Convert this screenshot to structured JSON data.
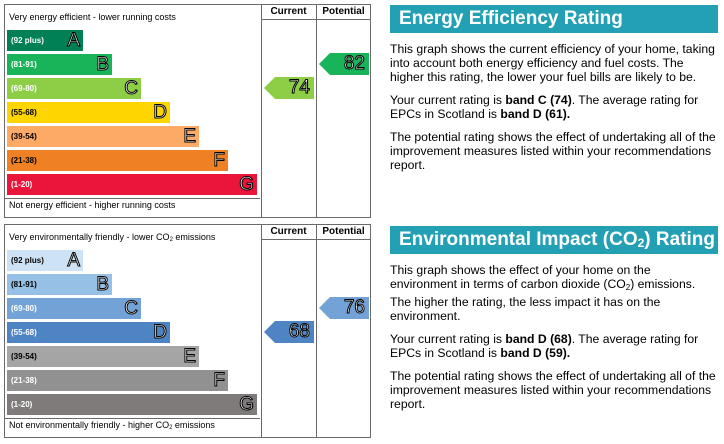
{
  "energy": {
    "top_caption": "Very energy efficient - lower running costs",
    "bottom_caption": "Not energy efficient - higher running costs",
    "col_current": "Current",
    "col_potential": "Potential",
    "bands": [
      {
        "range": "(92 plus)",
        "letter": "A",
        "color": "#008054",
        "text_color": "#ffffff"
      },
      {
        "range": "(81-91)",
        "letter": "B",
        "color": "#19b459",
        "text_color": "#ffffff"
      },
      {
        "range": "(69-80)",
        "letter": "C",
        "color": "#8dce46",
        "text_color": "#ffffff"
      },
      {
        "range": "(55-68)",
        "letter": "D",
        "color": "#ffd500",
        "text_color": "#000000"
      },
      {
        "range": "(39-54)",
        "letter": "E",
        "color": "#fcaa65",
        "text_color": "#000000"
      },
      {
        "range": "(21-38)",
        "letter": "F",
        "color": "#ef8023",
        "text_color": "#000000"
      },
      {
        "range": "(1-20)",
        "letter": "G",
        "color": "#e9153b",
        "text_color": "#ffffff"
      }
    ],
    "current": {
      "value": "74",
      "band": "C",
      "color": "#8dce46"
    },
    "potential": {
      "value": "82",
      "band": "B",
      "color": "#19b459"
    }
  },
  "environment": {
    "top_caption_pre": "Very environmentally friendly - lower CO",
    "top_caption_sub": "2",
    "top_caption_post": " emissions",
    "bottom_caption_pre": "Not environmentally friendly - higher CO",
    "bottom_caption_sub": "2",
    "bottom_caption_post": " emissions",
    "col_current": "Current",
    "col_potential": "Potential",
    "bands": [
      {
        "range": "(92 plus)",
        "letter": "A",
        "color": "#cde3f5",
        "text_color": "#000000"
      },
      {
        "range": "(81-91)",
        "letter": "B",
        "color": "#97c0e6",
        "text_color": "#000000"
      },
      {
        "range": "(69-80)",
        "letter": "C",
        "color": "#73a2d6",
        "text_color": "#ffffff"
      },
      {
        "range": "(55-68)",
        "letter": "D",
        "color": "#4e84c4",
        "text_color": "#ffffff"
      },
      {
        "range": "(39-54)",
        "letter": "E",
        "color": "#a5a5a5",
        "text_color": "#000000"
      },
      {
        "range": "(21-38)",
        "letter": "F",
        "color": "#919191",
        "text_color": "#ffffff"
      },
      {
        "range": "(1-20)",
        "letter": "G",
        "color": "#807b7b",
        "text_color": "#ffffff"
      }
    ],
    "current": {
      "value": "68",
      "band": "D",
      "color": "#4e84c4"
    },
    "potential": {
      "value": "76",
      "band": "C",
      "color": "#73a2d6"
    }
  },
  "panel_energy": {
    "title": "Energy Efficiency Rating",
    "para1": "This graph shows the current efficiency of your home, taking into account both energy efficiency and fuel costs. The higher this rating, the lower your fuel bills are likely to be.",
    "para2_pre": "Your current rating is ",
    "para2_b1": "band C (74)",
    "para2_mid": ". The average rating for EPCs in Scotland is ",
    "para2_b2": "band D (61).",
    "para3": "The potential rating shows the effect of undertaking all of the improvement measures listed within your recommendations report."
  },
  "panel_env": {
    "title_pre": "Environmental Impact (CO",
    "title_sub": "2",
    "title_post": ") Rating",
    "para1_pre": "This graph shows the effect of your home on the environment in terms of carbon dioxide (CO",
    "para1_sub": "2",
    "para1_post": ") emissions. The higher the rating, the less impact it has on the environment.",
    "para2_pre": "Your current rating is ",
    "para2_b1": "band D (68)",
    "para2_mid": ". The average rating for EPCs in Scotland is ",
    "para2_b2": "band D (59).",
    "para3": "The potential rating shows the effect of undertaking all of the improvement measures listed within your recommendations report."
  },
  "accent_color": "#24a0b4"
}
